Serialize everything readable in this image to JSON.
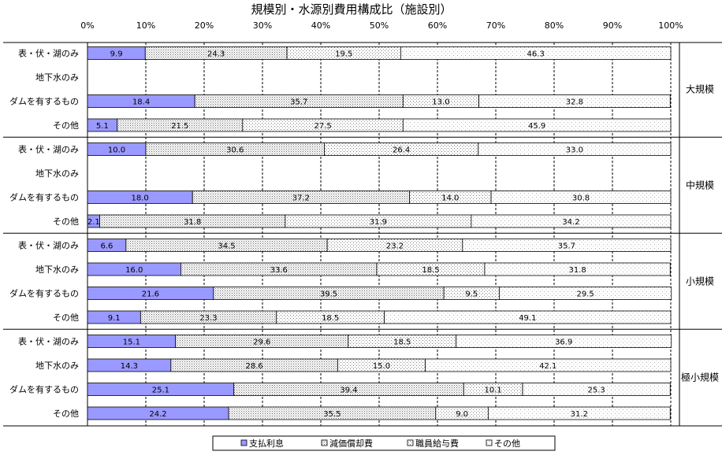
{
  "colors": {
    "interest": "#9999ff",
    "depreciation": "#ffffff",
    "personnel": "#ffffff",
    "other": "#ffffff",
    "border": "#000000",
    "grid": "#000000"
  },
  "chart_data": {
    "type": "bar",
    "orientation": "horizontal",
    "stacked": true,
    "percent": true,
    "title": "規模別・水源別費用構成比（施設別）",
    "xlim": [
      0,
      100
    ],
    "x_ticks": [
      "0%",
      "10%",
      "20%",
      "30%",
      "40%",
      "50%",
      "60%",
      "70%",
      "80%",
      "90%",
      "100%"
    ],
    "grid": true,
    "legend_position": "bottom",
    "groups": [
      {
        "label": "大規模",
        "rows": [
          {
            "label": "表・伏・湖のみ",
            "values": [
              9.9,
              24.3,
              19.5,
              46.3
            ]
          },
          {
            "label": "地下水のみ",
            "values": null
          },
          {
            "label": "ダムを有するもの",
            "values": [
              18.4,
              35.7,
              13.0,
              32.8
            ]
          },
          {
            "label": "その他",
            "values": [
              5.1,
              21.5,
              27.5,
              45.9
            ]
          }
        ]
      },
      {
        "label": "中規模",
        "rows": [
          {
            "label": "表・伏・湖のみ",
            "values": [
              10.0,
              30.6,
              26.4,
              33.0
            ]
          },
          {
            "label": "地下水のみ",
            "values": null
          },
          {
            "label": "ダムを有するもの",
            "values": [
              18.0,
              37.2,
              14.0,
              30.8
            ]
          },
          {
            "label": "その他",
            "values": [
              2.1,
              31.8,
              31.9,
              34.2
            ]
          }
        ]
      },
      {
        "label": "小規模",
        "rows": [
          {
            "label": "表・伏・湖のみ",
            "values": [
              6.6,
              34.5,
              23.2,
              35.7
            ]
          },
          {
            "label": "地下水のみ",
            "values": [
              16.0,
              33.6,
              18.5,
              31.8
            ]
          },
          {
            "label": "ダムを有するもの",
            "values": [
              21.6,
              39.5,
              9.5,
              29.5
            ]
          },
          {
            "label": "その他",
            "values": [
              9.1,
              23.3,
              18.5,
              49.1
            ]
          }
        ]
      },
      {
        "label": "極小規模",
        "rows": [
          {
            "label": "表・伏・湖のみ",
            "values": [
              15.1,
              29.6,
              18.5,
              36.9
            ]
          },
          {
            "label": "地下水のみ",
            "values": [
              14.3,
              28.6,
              15.0,
              42.1
            ]
          },
          {
            "label": "ダムを有するもの",
            "values": [
              25.1,
              39.4,
              10.1,
              25.3
            ]
          },
          {
            "label": "その他",
            "values": [
              24.2,
              35.5,
              9.0,
              31.2
            ]
          }
        ]
      }
    ],
    "series": [
      {
        "name": "支払利息",
        "pattern": "solid-blue"
      },
      {
        "name": "減価償却費",
        "pattern": "dense-dots"
      },
      {
        "name": "職員給与費",
        "pattern": "sparse-dots"
      },
      {
        "name": "その他",
        "pattern": "fine-dots"
      }
    ]
  }
}
